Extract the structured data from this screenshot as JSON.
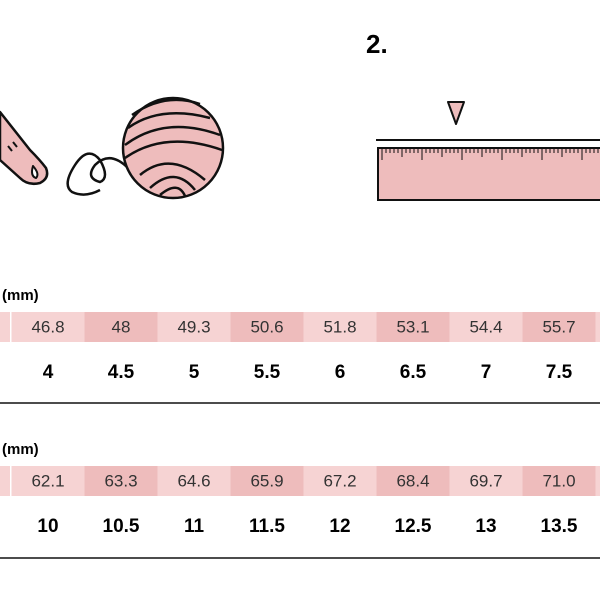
{
  "step": "2.",
  "tables": [
    {
      "label": "(mm)",
      "circumference": [
        "46.8",
        "48",
        "49.3",
        "50.6",
        "51.8",
        "53.1",
        "54.4",
        "55.7"
      ],
      "sizes": [
        "4",
        "4.5",
        "5",
        "5.5",
        "6",
        "6.5",
        "7",
        "7.5"
      ]
    },
    {
      "label": "(mm)",
      "circumference": [
        "62.1",
        "63.3",
        "64.6",
        "65.9",
        "67.2",
        "68.4",
        "69.7",
        "71.0"
      ],
      "sizes": [
        "10",
        "10.5",
        "11",
        "11.5",
        "12",
        "12.5",
        "13",
        "13.5"
      ]
    }
  ]
}
